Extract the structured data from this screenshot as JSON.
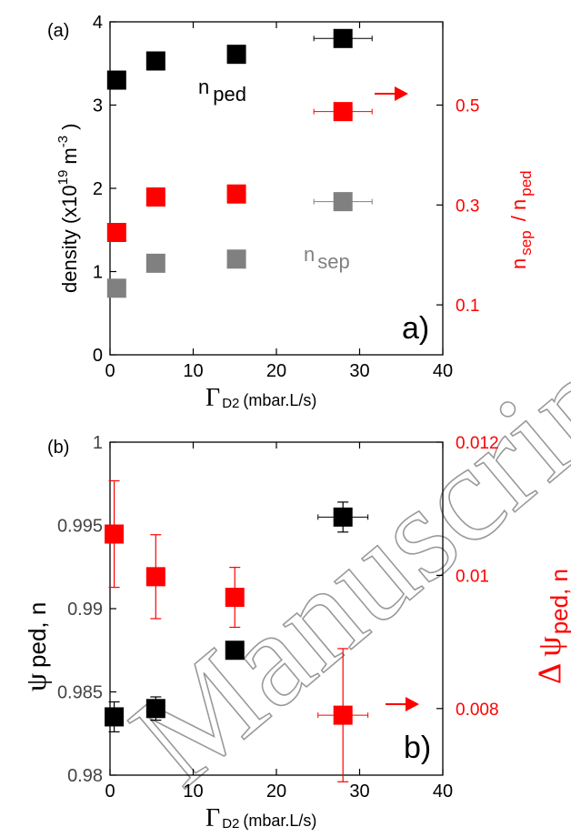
{
  "colors": {
    "black": "#000000",
    "red": "#ff0000",
    "gray": "#808080",
    "watermark": "#999999"
  },
  "watermark": "Manuscript",
  "chart_data": [
    {
      "type": "scatter",
      "panel_label": "(a)",
      "corner_label": "a)",
      "xlabel": {
        "symbol": "Γ",
        "sub": "D2",
        "units": "(mbar.L/s)"
      },
      "ylabel": {
        "main": "density (x10",
        "sup": "19",
        "unit": " m",
        "unit_sup": "-3",
        "close": ")"
      },
      "y2label": {
        "n1": "n",
        "sub1": "sep",
        "slash": " / n",
        "sub2": "ped"
      },
      "xlim": [
        0,
        40
      ],
      "ylim": [
        0,
        4
      ],
      "y2lim": [
        0.0,
        0.6667
      ],
      "xticks": [
        "0",
        "10",
        "20",
        "30",
        "40"
      ],
      "yticks": [
        "0",
        "1",
        "2",
        "3",
        "4"
      ],
      "y2ticks": [
        "0.1",
        "0.3",
        "0.5"
      ],
      "y2tick_values": [
        0.1,
        0.3,
        0.5
      ],
      "series": [
        {
          "axis": "left",
          "color": "black",
          "annotation": {
            "main": "n",
            "sub": "ped"
          },
          "points": [
            {
              "x": 0.8,
              "y": 3.3,
              "xerr": 0
            },
            {
              "x": 5.5,
              "y": 3.53,
              "xerr": 1.0
            },
            {
              "x": 15.2,
              "y": 3.61,
              "xerr": 0
            },
            {
              "x": 28,
              "y": 3.8,
              "xerr": 3.5
            }
          ]
        },
        {
          "axis": "left",
          "color": "gray",
          "annotation": {
            "main": "n",
            "sub": "sep"
          },
          "points": [
            {
              "x": 0.8,
              "y": 0.8,
              "xerr": 0
            },
            {
              "x": 5.5,
              "y": 1.1,
              "xerr": 1.0
            },
            {
              "x": 15.2,
              "y": 1.15,
              "xerr": 0
            },
            {
              "x": 28,
              "y": 1.84,
              "xerr": 3.5
            }
          ]
        },
        {
          "axis": "right",
          "color": "red",
          "points": [
            {
              "x": 0.8,
              "y": 0.245,
              "xerr": 0
            },
            {
              "x": 5.5,
              "y": 0.316,
              "xerr": 1.0
            },
            {
              "x": 15.2,
              "y": 0.322,
              "xerr": 0
            },
            {
              "x": 28,
              "y": 0.487,
              "xerr": 3.5
            }
          ]
        }
      ]
    },
    {
      "type": "scatter",
      "panel_label": "(b)",
      "corner_label": "b)",
      "xlabel": {
        "symbol": "Γ",
        "sub": "D2",
        "units": "(mbar.L/s)"
      },
      "ylabel": {
        "symbol": "ψ",
        "text": "ped, n"
      },
      "y2label": {
        "symbol": "Δ ψ",
        "sub": "ped, n"
      },
      "xlim": [
        0,
        40
      ],
      "ylim": [
        0.98,
        1.0
      ],
      "y2lim": [
        0.007,
        0.012
      ],
      "xticks": [
        "0",
        "10",
        "20",
        "30",
        "40"
      ],
      "yticks": [
        "0.98",
        "0.985",
        "0.99",
        "0.995",
        "1"
      ],
      "ytick_values": [
        0.98,
        0.985,
        0.99,
        0.995,
        1.0
      ],
      "y2ticks": [
        "0.008",
        "0.01",
        "0.012"
      ],
      "y2tick_values": [
        0.008,
        0.01,
        0.012
      ],
      "series": [
        {
          "axis": "left",
          "color": "black",
          "points": [
            {
              "x": 0.5,
              "y": 0.9835,
              "xerr": 0,
              "yerr": 0.0009
            },
            {
              "x": 5.5,
              "y": 0.984,
              "xerr": 1.0,
              "yerr": 0.0007
            },
            {
              "x": 15.0,
              "y": 0.9875,
              "xerr": 0,
              "yerr": 0
            },
            {
              "x": 28,
              "y": 0.9955,
              "xerr": 3.0,
              "yerr": 0.0009
            }
          ]
        },
        {
          "axis": "right",
          "color": "red",
          "points": [
            {
              "x": 0.5,
              "y": 0.01062,
              "xerr": 0,
              "yerr": 0.0008
            },
            {
              "x": 5.5,
              "y": 0.00998,
              "xerr": 1.0,
              "yerr": 0.00063
            },
            {
              "x": 15.0,
              "y": 0.00967,
              "xerr": 0,
              "yerr": 0.00045
            },
            {
              "x": 28,
              "y": 0.0079,
              "xerr": 3.0,
              "yerr": 0.001
            }
          ]
        }
      ]
    }
  ]
}
